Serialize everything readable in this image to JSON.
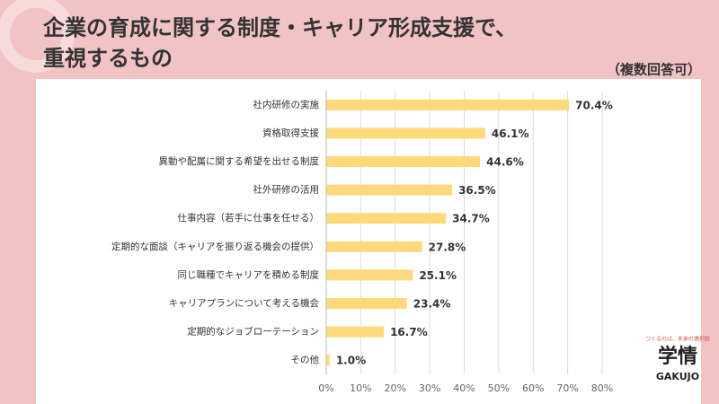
{
  "chart_data": {
    "type": "barh",
    "title": [
      "企業の育成に関する制度・キャリア形成支援で、",
      "重視するもの"
    ],
    "note": "（複数回答可）",
    "categories": [
      "社内研修の実施",
      "資格取得支援",
      "異動や配属に関する希望を出せる制度",
      "社外研修の活用",
      "仕事内容（若手に仕事を任せる）",
      "定期的な面談（キャリアを振り返る機会の提供）",
      "同じ職種でキャリアを積める制度",
      "キャリアプランについて考える機会",
      "定期的なジョブローテーション",
      "その他"
    ],
    "values": [
      70.4,
      46.1,
      44.6,
      36.5,
      34.7,
      27.8,
      25.1,
      23.4,
      16.7,
      1.0
    ],
    "value_labels": [
      "70.4%",
      "46.1%",
      "44.6%",
      "36.5%",
      "34.7%",
      "27.8%",
      "25.1%",
      "23.4%",
      "16.7%",
      "1.0%"
    ],
    "color": "#fcd97a",
    "xlim": [
      0,
      80
    ],
    "xticks": [
      {
        "value": 0,
        "label": "0%"
      },
      {
        "value": 10,
        "label": "10%"
      },
      {
        "value": 20,
        "label": "20%"
      },
      {
        "value": 30,
        "label": "30%"
      },
      {
        "value": 40,
        "label": "40%"
      },
      {
        "value": 50,
        "label": "50%"
      },
      {
        "value": 60,
        "label": "60%"
      },
      {
        "value": 70,
        "label": "70%"
      },
      {
        "value": 80,
        "label": "80%"
      }
    ],
    "grid": true
  },
  "brand": {
    "tagline": "つくるのは、未来の選択肢",
    "name": "学情",
    "roman": "GAKUJO"
  }
}
